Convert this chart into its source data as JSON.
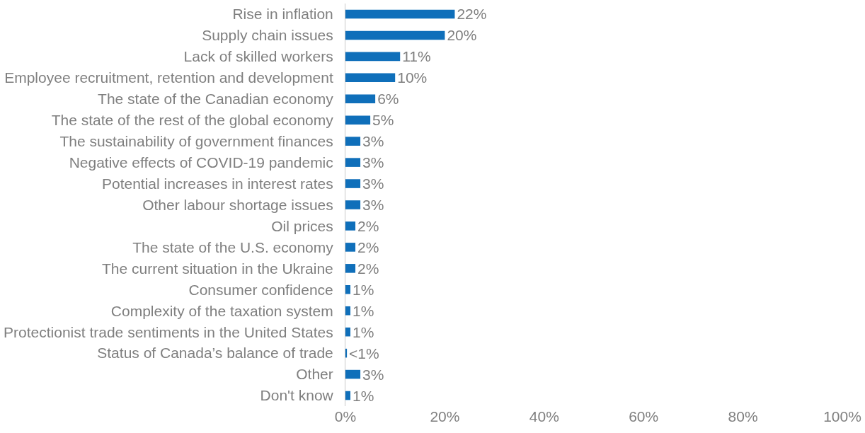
{
  "chart_data": {
    "type": "bar",
    "orientation": "horizontal",
    "categories": [
      "Rise in inflation",
      "Supply chain issues",
      "Lack of skilled workers",
      "Employee recruitment, retention and development",
      "The state of the Canadian economy",
      "The state of the rest of the global economy",
      "The sustainability of government finances",
      "Negative effects of COVID-19 pandemic",
      "Potential increases in interest rates",
      "Other labour shortage issues",
      "Oil prices",
      "The state of the U.S. economy",
      "The current situation in the Ukraine",
      "Consumer confidence",
      "Complexity of the taxation system",
      "Protectionist trade sentiments in the United States",
      "Status of Canada’s balance of trade",
      "Other",
      "Don't know"
    ],
    "values": [
      22,
      20,
      11,
      10,
      6,
      5,
      3,
      3,
      3,
      3,
      2,
      2,
      2,
      1,
      1,
      1,
      0.3,
      3,
      1
    ],
    "value_labels": [
      "22%",
      "20%",
      "11%",
      "10%",
      "6%",
      "5%",
      "3%",
      "3%",
      "3%",
      "3%",
      "2%",
      "2%",
      "2%",
      "1%",
      "1%",
      "1%",
      "<1%",
      "3%",
      "1%"
    ],
    "color": "#0f6fba",
    "xlim": [
      0,
      100
    ],
    "xticks": [
      {
        "value": 0,
        "label": "0%"
      },
      {
        "value": 20,
        "label": "20%"
      },
      {
        "value": 40,
        "label": "40%"
      },
      {
        "value": 60,
        "label": "60%"
      },
      {
        "value": 80,
        "label": "80%"
      },
      {
        "value": 100,
        "label": "100%"
      }
    ],
    "grid": false
  }
}
